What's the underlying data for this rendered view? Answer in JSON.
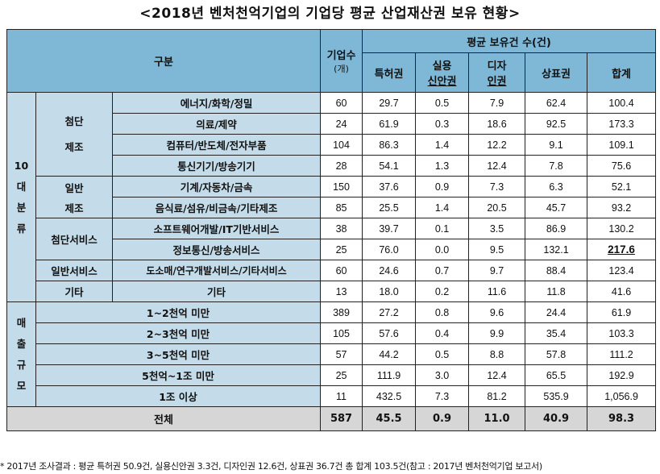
{
  "title": "<2018년 벤처천억기업의 기업당 평균 산업재산권 보유 현황>",
  "header": {
    "gubun": "구분",
    "companies": "기업수",
    "companies_unit": "(개)",
    "avg_label": "평균 보유건 수(건)",
    "cols": {
      "patent": "특허권",
      "utility_1": "실용",
      "utility_2": "신안권",
      "design_1": "디자",
      "design_2": "인권",
      "trademark": "상표권",
      "total": "합계"
    }
  },
  "groups": {
    "industry_1": "10",
    "industry_2": "대",
    "industry_3": "분",
    "industry_4": "류",
    "sales_1": "매",
    "sales_2": "출",
    "sales_3": "규",
    "sales_4": "모",
    "hightech_mfg_1": "첨단",
    "hightech_mfg_2": "제조",
    "general_mfg_1": "일반",
    "general_mfg_2": "제조",
    "hightech_svc": "첨단서비스",
    "general_svc": "일반서비스",
    "other": "기타"
  },
  "rows": [
    {
      "label": "에너지/화학/정밀",
      "companies": "60",
      "patent": "29.7",
      "utility": "0.5",
      "design": "7.9",
      "trademark": "62.4",
      "total": "100.4"
    },
    {
      "label": "의료/제약",
      "companies": "24",
      "patent": "61.9",
      "utility": "0.3",
      "design": "18.6",
      "trademark": "92.5",
      "total": "173.3"
    },
    {
      "label": "컴퓨터/반도체/전자부품",
      "companies": "104",
      "patent": "86.3",
      "utility": "1.4",
      "design": "12.2",
      "trademark": "9.1",
      "total": "109.1"
    },
    {
      "label": "통신기기/방송기기",
      "companies": "28",
      "patent": "54.1",
      "utility": "1.3",
      "design": "12.4",
      "trademark": "7.8",
      "total": "75.6"
    },
    {
      "label": "기계/자동차/금속",
      "companies": "150",
      "patent": "37.6",
      "utility": "0.9",
      "design": "7.3",
      "trademark": "6.3",
      "total": "52.1"
    },
    {
      "label": "음식료/섬유/비금속/기타제조",
      "companies": "85",
      "patent": "25.5",
      "utility": "1.4",
      "design": "20.5",
      "trademark": "45.7",
      "total": "93.2"
    },
    {
      "label": "소프트웨어개발/IT기반서비스",
      "companies": "38",
      "patent": "39.7",
      "utility": "0.1",
      "design": "3.5",
      "trademark": "86.9",
      "total": "130.2"
    },
    {
      "label": "정보통신/방송서비스",
      "companies": "25",
      "patent": "76.0",
      "utility": "0.0",
      "design": "9.5",
      "trademark": "132.1",
      "total": "217.6"
    },
    {
      "label": "도소매/연구개발서비스/기타서비스",
      "companies": "60",
      "patent": "24.6",
      "utility": "0.7",
      "design": "9.7",
      "trademark": "88.4",
      "total": "123.4"
    },
    {
      "label": "기타",
      "companies": "13",
      "patent": "18.0",
      "utility": "0.2",
      "design": "11.6",
      "trademark": "11.8",
      "total": "41.6"
    },
    {
      "label": "1~2천억 미만",
      "companies": "389",
      "patent": "27.2",
      "utility": "0.8",
      "design": "9.6",
      "trademark": "24.4",
      "total": "61.9"
    },
    {
      "label": "2~3천억 미만",
      "companies": "105",
      "patent": "57.6",
      "utility": "0.4",
      "design": "9.9",
      "trademark": "35.4",
      "total": "103.3"
    },
    {
      "label": "3~5천억 미만",
      "companies": "57",
      "patent": "44.2",
      "utility": "0.5",
      "design": "8.8",
      "trademark": "57.8",
      "total": "111.2"
    },
    {
      "label": "5천억~1조 미만",
      "companies": "25",
      "patent": "111.9",
      "utility": "3.0",
      "design": "12.4",
      "trademark": "65.5",
      "total": "192.9"
    },
    {
      "label": "1조 이상",
      "companies": "11",
      "patent": "432.5",
      "utility": "7.3",
      "design": "81.2",
      "trademark": "535.9",
      "total": "1,056.9"
    }
  ],
  "total_row": {
    "label": "전체",
    "companies": "587",
    "patent": "45.5",
    "utility": "0.9",
    "design": "11.0",
    "trademark": "40.9",
    "total": "98.3"
  },
  "footnote": "* 2017년 조사결과 : 평균 특허권 50.9건, 실용신안권 3.3건, 디자인권 12.6건, 상표권 36.7건 총 합계 103.5건(참고 : 2017년 벤처천억기업 보고서)",
  "colors": {
    "header_bg": "#7fb8d6",
    "label_bg": "#c4dcea",
    "total_bg": "#d6d6d6"
  }
}
